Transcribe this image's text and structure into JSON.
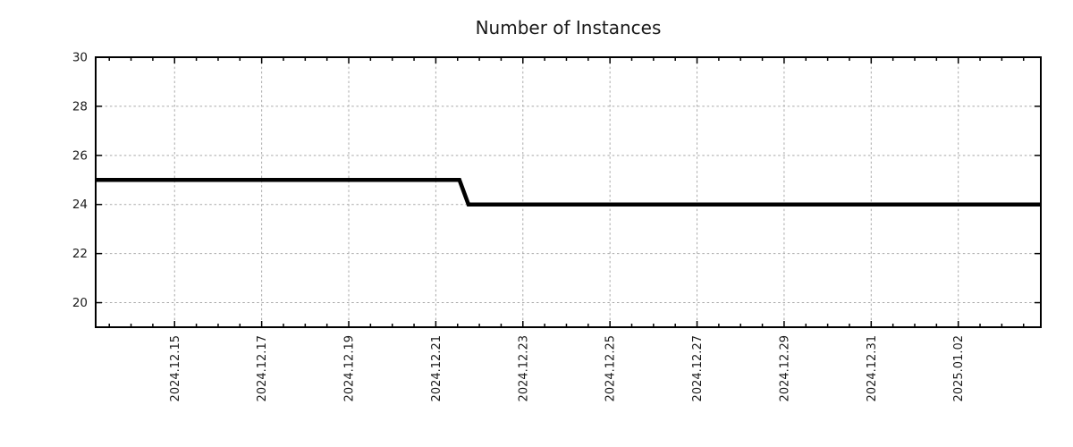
{
  "chart_data": {
    "type": "line",
    "title": "Number of Instances",
    "legend": "none",
    "grid": true,
    "x_axis": {
      "min": "2024-12-13 04:30",
      "max": "2025-01-03 21:30",
      "minor_tick_hours": 12,
      "major_ticks": [
        {
          "date": "2024-12-15 00:00",
          "label": "2024.12.15"
        },
        {
          "date": "2024-12-17 00:00",
          "label": "2024.12.17"
        },
        {
          "date": "2024-12-19 00:00",
          "label": "2024.12.19"
        },
        {
          "date": "2024-12-21 00:00",
          "label": "2024.12.21"
        },
        {
          "date": "2024-12-23 00:00",
          "label": "2024.12.23"
        },
        {
          "date": "2024-12-25 00:00",
          "label": "2024.12.25"
        },
        {
          "date": "2024-12-27 00:00",
          "label": "2024.12.27"
        },
        {
          "date": "2024-12-29 00:00",
          "label": "2024.12.29"
        },
        {
          "date": "2024-12-31 00:00",
          "label": "2024.12.31"
        },
        {
          "date": "2025-01-02 00:00",
          "label": "2025.01.02"
        }
      ]
    },
    "y_axis": {
      "min": 19,
      "max": 30,
      "ticks": [
        20,
        22,
        24,
        26,
        28,
        30
      ]
    },
    "series": [
      {
        "name": "instances",
        "points": [
          {
            "x": "2024-12-13 04:30",
            "y": 25
          },
          {
            "x": "2024-12-21 13:00",
            "y": 25
          },
          {
            "x": "2024-12-21 18:00",
            "y": 24
          },
          {
            "x": "2025-01-03 21:30",
            "y": 24
          }
        ]
      }
    ],
    "style": {
      "line_color": "#000000",
      "grid_color": "#a9a9a9",
      "axis_color": "#000000",
      "text_color": "#1a1a1a",
      "background": "#ffffff"
    }
  }
}
